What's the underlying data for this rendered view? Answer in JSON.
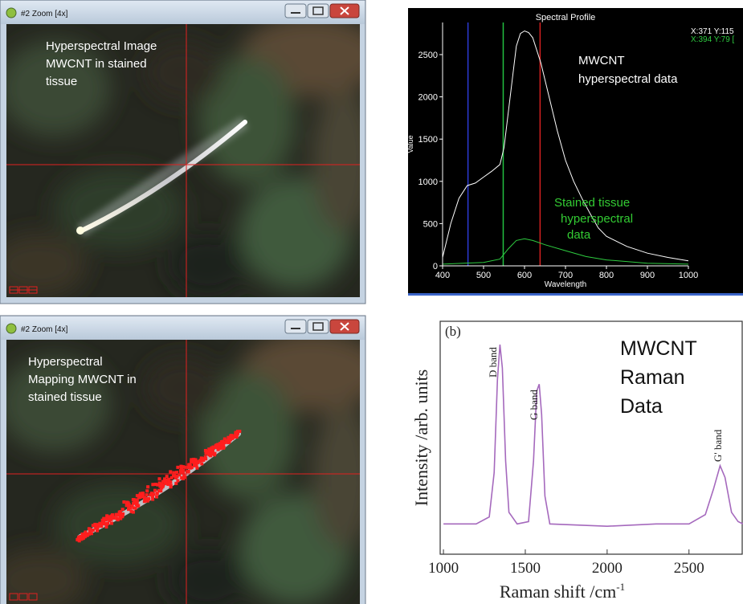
{
  "windows": [
    {
      "title": "#2 Zoom [4x]",
      "caption": [
        "Hyperspectral Image",
        "MWCNT in stained",
        "tissue"
      ]
    },
    {
      "title": "#2 Zoom [4x]",
      "caption": [
        "Hyperspectral",
        "Mapping MWCNT in",
        "stained tissue"
      ]
    }
  ],
  "chart_data": [
    {
      "type": "line",
      "title": "Spectral Profile",
      "x_label": "Wavelength",
      "y_label": "Value",
      "xlim": [
        400,
        1000
      ],
      "ylim": [
        0,
        2880
      ],
      "xticks": [
        400,
        500,
        600,
        700,
        800,
        900,
        1000
      ],
      "yticks": [
        0,
        500,
        1000,
        1500,
        2000,
        2500
      ],
      "background": "#000000",
      "series": [
        {
          "name": "X:371 Y:115",
          "color": "#ffffff",
          "x": [
            400,
            420,
            440,
            460,
            480,
            500,
            520,
            540,
            550,
            560,
            570,
            580,
            590,
            600,
            610,
            620,
            640,
            660,
            680,
            700,
            720,
            740,
            760,
            780,
            800,
            850,
            900,
            950,
            1000
          ],
          "values": [
            100,
            500,
            800,
            950,
            980,
            1050,
            1120,
            1200,
            1400,
            1800,
            2200,
            2600,
            2750,
            2780,
            2760,
            2700,
            2400,
            2000,
            1600,
            1250,
            1000,
            800,
            620,
            450,
            350,
            230,
            150,
            100,
            60
          ]
        },
        {
          "name": "X:394 Y:79 [",
          "color": "#2ecc40",
          "x": [
            400,
            450,
            500,
            540,
            560,
            580,
            600,
            620,
            650,
            700,
            750,
            800,
            900,
            1000
          ],
          "values": [
            20,
            30,
            40,
            80,
            200,
            300,
            320,
            300,
            250,
            180,
            110,
            70,
            30,
            20
          ]
        }
      ],
      "cursor_lines": [
        {
          "x": 462,
          "color": "#2b3bd6"
        },
        {
          "x": 548,
          "color": "#22c040"
        },
        {
          "x": 638,
          "color": "#d42020"
        }
      ],
      "annotations": [
        {
          "lines": [
            "MWCNT",
            "hyperspectral data"
          ],
          "color": "#ffffff"
        },
        {
          "lines": [
            "Stained tissue",
            "hyperspectral",
            "data"
          ],
          "color": "#33cc33"
        }
      ]
    },
    {
      "type": "line",
      "panel_label": "(b)",
      "x_label": "Raman shift /cm",
      "x_label_superscript": "-1",
      "y_label": "Intensity /arb. units",
      "xlim": [
        980,
        2830
      ],
      "ylim": [
        0,
        100
      ],
      "xticks": [
        1000,
        1500,
        2000,
        2500
      ],
      "x": [
        1000,
        1200,
        1280,
        1310,
        1330,
        1345,
        1360,
        1380,
        1400,
        1450,
        1520,
        1550,
        1570,
        1585,
        1600,
        1620,
        1650,
        2000,
        2300,
        2500,
        2600,
        2650,
        2690,
        2720,
        2760,
        2800,
        2830
      ],
      "series": [
        {
          "color": "#a569bd",
          "values": [
            13,
            13,
            16,
            35,
            75,
            90,
            80,
            40,
            18,
            13,
            14,
            40,
            70,
            73,
            60,
            25,
            13,
            12,
            13,
            13,
            17,
            28,
            38,
            33,
            18,
            14,
            13
          ]
        }
      ],
      "peak_labels": [
        "D band",
        "G band",
        "G' band"
      ],
      "annotation": [
        "MWCNT",
        "Raman",
        "Data"
      ]
    }
  ]
}
